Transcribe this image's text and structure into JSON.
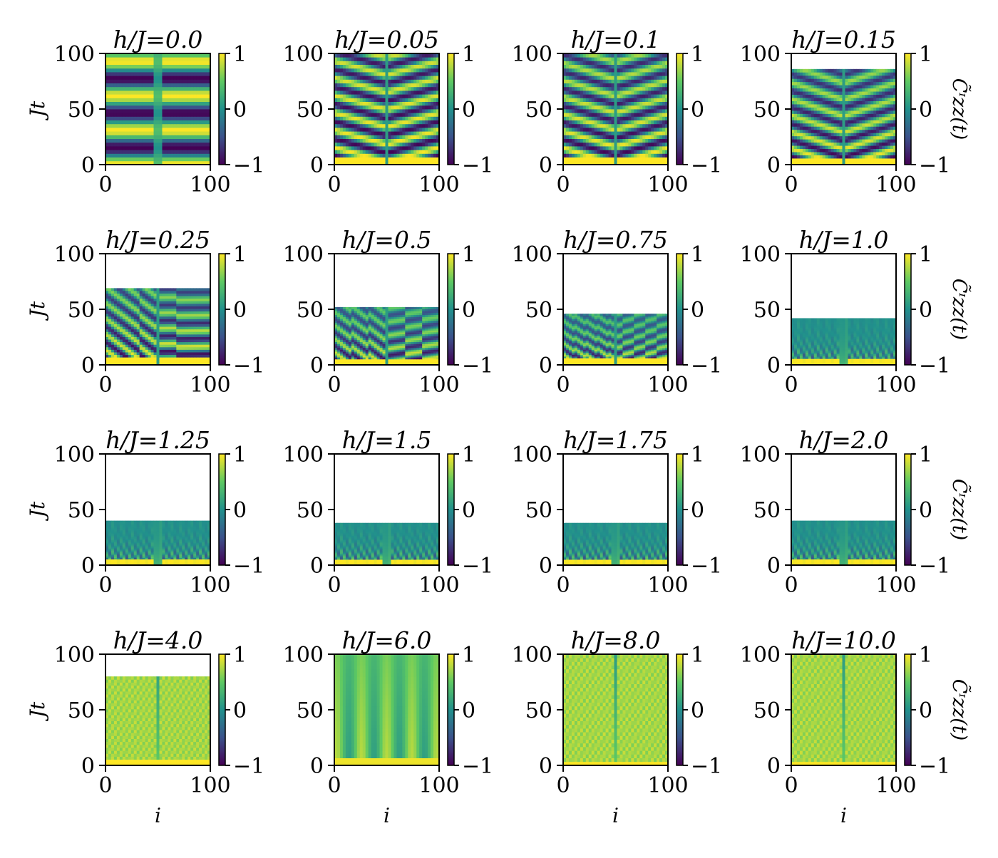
{
  "chart_data": {
    "type": "heatmap",
    "description_grid": "4x4 small-multiple heatmaps",
    "x_label": "i",
    "y_label": "Jt",
    "colorbar_label": "C̃ᶦzz(t)",
    "x_range": [
      0,
      100
    ],
    "y_range": [
      0,
      100
    ],
    "x_ticks": [
      "0",
      "100"
    ],
    "y_ticks": [
      "0",
      "50",
      "100"
    ],
    "colorbar_range": [
      -1,
      1
    ],
    "colorbar_ticks": [
      "1",
      "0",
      "−1"
    ],
    "colormap": [
      "#440154",
      "#3b528b",
      "#21918c",
      "#5ec962",
      "#fde725"
    ],
    "panels": [
      {
        "title": "h/J = 0.0",
        "h": 0.0,
        "tmax": 100,
        "pattern": "bands"
      },
      {
        "title": "h/J = 0.05",
        "h": 0.05,
        "tmax": 100,
        "pattern": "arcs"
      },
      {
        "title": "h/J = 0.1",
        "h": 0.1,
        "tmax": 100,
        "pattern": "arcs"
      },
      {
        "title": "h/J = 0.15",
        "h": 0.15,
        "tmax": 86,
        "pattern": "arcs"
      },
      {
        "title": "h/J = 0.25",
        "h": 0.25,
        "tmax": 69,
        "pattern": "arcs"
      },
      {
        "title": "h/J = 0.5",
        "h": 0.5,
        "tmax": 52,
        "pattern": "arcs"
      },
      {
        "title": "h/J = 0.75",
        "h": 0.75,
        "tmax": 46,
        "pattern": "arcs"
      },
      {
        "title": "h/J = 1.0",
        "h": 1.0,
        "tmax": 42,
        "pattern": "damped"
      },
      {
        "title": "h/J = 1.25",
        "h": 1.25,
        "tmax": 40,
        "pattern": "damped"
      },
      {
        "title": "h/J = 1.5",
        "h": 1.5,
        "tmax": 38,
        "pattern": "damped"
      },
      {
        "title": "h/J = 1.75",
        "h": 1.75,
        "tmax": 38,
        "pattern": "damped"
      },
      {
        "title": "h/J = 2.0",
        "h": 2.0,
        "tmax": 40,
        "pattern": "damped"
      },
      {
        "title": "h/J = 4.0",
        "h": 4.0,
        "tmax": 80,
        "pattern": "flat"
      },
      {
        "title": "h/J = 6.0",
        "h": 6.0,
        "tmax": 100,
        "pattern": "stripes"
      },
      {
        "title": "h/J = 8.0",
        "h": 8.0,
        "tmax": 100,
        "pattern": "flat"
      },
      {
        "title": "h/J = 10.0",
        "h": 10.0,
        "tmax": 100,
        "pattern": "flat"
      }
    ]
  }
}
